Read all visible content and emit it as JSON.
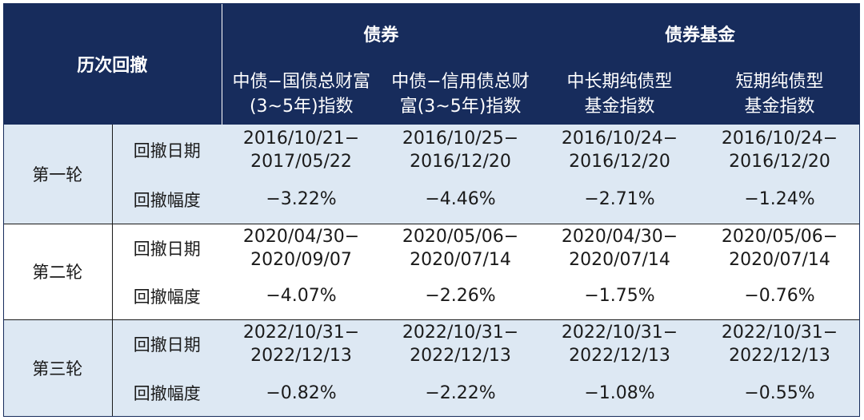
{
  "header": {
    "corner": "历次回撤",
    "groups": [
      {
        "label": "债券"
      },
      {
        "label": "债券基金"
      }
    ],
    "columns": [
      {
        "line1": "中债−国债总财富",
        "line2": "(3~5年)指数"
      },
      {
        "line1": "中债−信用债总财",
        "line2": "富(3~5年)指数"
      },
      {
        "line1": "中长期纯债型",
        "line2": "基金指数"
      },
      {
        "line1": "短期纯债型",
        "line2": "基金指数"
      }
    ]
  },
  "rounds": [
    {
      "name": "第一轮",
      "date_label": "回撤日期",
      "depth_label": "回撤幅度",
      "dates": [
        {
          "start": "2016/10/21−",
          "end": "2017/05/22"
        },
        {
          "start": "2016/10/25−",
          "end": "2016/12/20"
        },
        {
          "start": "2016/10/24−",
          "end": "2016/12/20"
        },
        {
          "start": "2016/10/24−",
          "end": "2016/12/20"
        }
      ],
      "depths": [
        "−3.22%",
        "−4.46%",
        "−2.71%",
        "−1.24%"
      ]
    },
    {
      "name": "第二轮",
      "date_label": "回撤日期",
      "depth_label": "回撤幅度",
      "dates": [
        {
          "start": "2020/04/30−",
          "end": "2020/09/07"
        },
        {
          "start": "2020/05/06−",
          "end": "2020/07/14"
        },
        {
          "start": "2020/04/30−",
          "end": "2020/07/14"
        },
        {
          "start": "2020/05/06−",
          "end": "2020/07/14"
        }
      ],
      "depths": [
        "−4.07%",
        "−2.26%",
        "−1.75%",
        "−0.76%"
      ]
    },
    {
      "name": "第三轮",
      "date_label": "回撤日期",
      "depth_label": "回撤幅度",
      "dates": [
        {
          "start": "2022/10/31−",
          "end": "2022/12/13"
        },
        {
          "start": "2022/10/31−",
          "end": "2022/12/13"
        },
        {
          "start": "2022/10/31−",
          "end": "2022/12/13"
        },
        {
          "start": "2022/10/31−",
          "end": "2022/12/13"
        }
      ],
      "depths": [
        "−0.82%",
        "−2.22%",
        "−1.08%",
        "−0.55%"
      ]
    }
  ]
}
